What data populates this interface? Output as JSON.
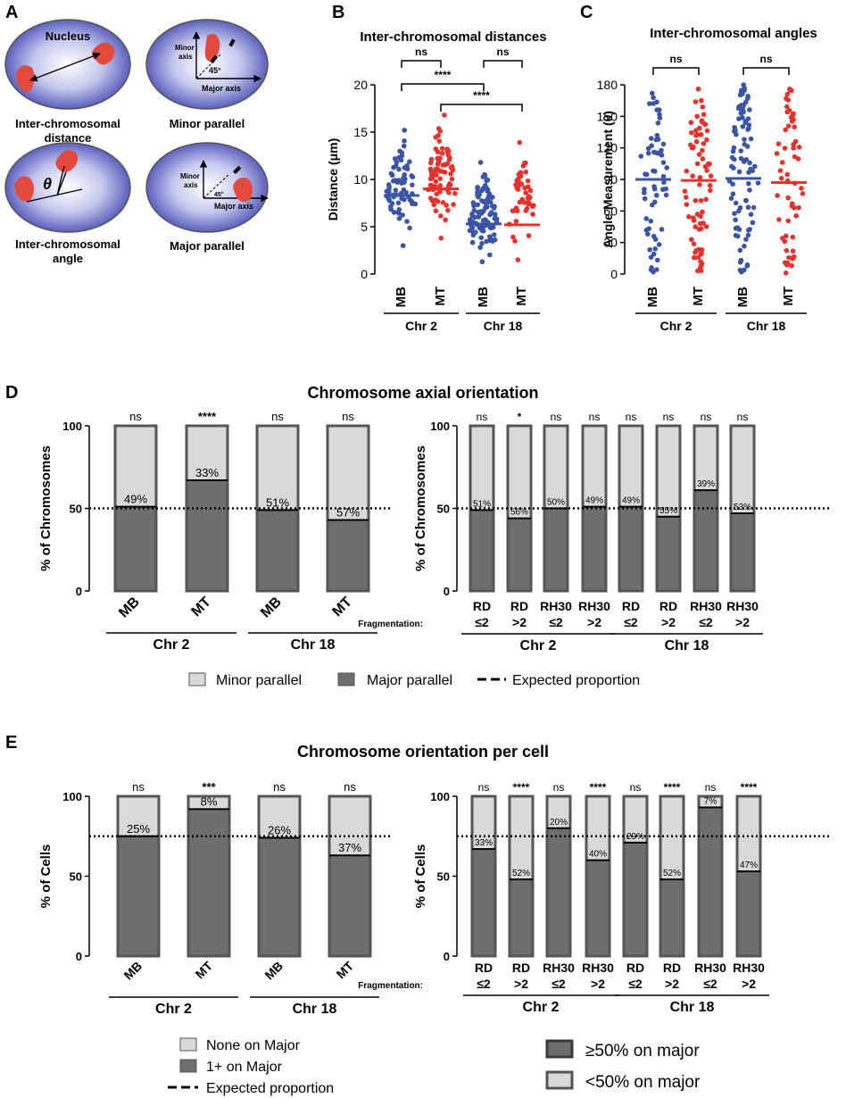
{
  "colors": {
    "blue": "#3a55a8",
    "red": "#e8312c",
    "light_gray": "#d9d9d9",
    "dark_gray": "#6e6e6e",
    "bar_outline": "#555555",
    "nucleus_edge": "#e8e9f7",
    "nucleus_core": "#6e73c7",
    "chromosome": "#e24a3d"
  },
  "panel_labels": {
    "a": "A",
    "b": "B",
    "c": "C",
    "d": "D",
    "e": "E"
  },
  "panel_a": {
    "nucleus_label": "Nucleus",
    "distance_label_1": "Inter-chromosomal",
    "distance_label_2": "distance",
    "minor_title": "Minor parallel",
    "angle_label_1": "Inter-chromosomal",
    "angle_label_2": "angle",
    "major_title": "Major parallel",
    "theta": "θ",
    "minor_axis_1": "Minor",
    "minor_axis_2": "axis",
    "major_axis": "Major axis",
    "angle_45": "45°"
  },
  "chart_data": [
    {
      "id": "B",
      "type": "scatter",
      "title": "Inter-chromosomal distances",
      "ylabel": "Distance (μm)",
      "ylim": [
        0,
        20
      ],
      "yticks": [
        0,
        5,
        10,
        15,
        20
      ],
      "categories": [
        "MB",
        "MT",
        "MB",
        "MT"
      ],
      "groups": [
        "Chr 2",
        "Chr 18"
      ],
      "series": [
        {
          "name": "Chr 2 MB",
          "color": "blue",
          "n": 70,
          "min": 3.0,
          "max": 15.2,
          "median": 8.3
        },
        {
          "name": "Chr 2 MT",
          "color": "red",
          "n": 75,
          "min": 3.8,
          "max": 16.8,
          "median": 9.0
        },
        {
          "name": "Chr 18 MB",
          "color": "blue",
          "n": 100,
          "min": 1.3,
          "max": 11.8,
          "median": 5.3
        },
        {
          "name": "Chr 18 MT",
          "color": "red",
          "n": 50,
          "min": 1.5,
          "max": 13.9,
          "median": 5.2
        }
      ],
      "significance": [
        {
          "label": "ns",
          "from": 0,
          "to": 1
        },
        {
          "label": "ns",
          "from": 2,
          "to": 3
        },
        {
          "label": "****",
          "from": 0,
          "to": 2
        },
        {
          "label": "****",
          "from": 1,
          "to": 3
        }
      ]
    },
    {
      "id": "C",
      "type": "scatter",
      "title": "Inter-chromosomal angles",
      "ylabel": "Angle Measurement (θ)",
      "ylim": [
        0,
        180
      ],
      "yticks": [
        0,
        30,
        60,
        90,
        120,
        150,
        180
      ],
      "categories": [
        "MB",
        "MT",
        "MB",
        "MT"
      ],
      "groups": [
        "Chr 2",
        "Chr 18"
      ],
      "series": [
        {
          "name": "Chr 2 MB",
          "color": "blue",
          "n": 62,
          "min": 2,
          "max": 172,
          "median": 90
        },
        {
          "name": "Chr 2 MT",
          "color": "red",
          "n": 78,
          "min": 3,
          "max": 176,
          "median": 89
        },
        {
          "name": "Chr 18 MB",
          "color": "blue",
          "n": 90,
          "min": 2,
          "max": 180,
          "median": 91
        },
        {
          "name": "Chr 18 MT",
          "color": "red",
          "n": 60,
          "min": 1,
          "max": 176,
          "median": 87
        }
      ],
      "significance": [
        {
          "label": "ns",
          "from": 0,
          "to": 1
        },
        {
          "label": "ns",
          "from": 2,
          "to": 3
        }
      ]
    },
    {
      "id": "D-left",
      "type": "bar",
      "stacked": true,
      "ylabel": "% of Chromosomes",
      "ylim": [
        0,
        100
      ],
      "yticks": [
        0,
        50,
        100
      ],
      "expected": 50,
      "categories": [
        "MB",
        "MT",
        "MB",
        "MT"
      ],
      "groups": [
        "Chr 2",
        "Chr 18"
      ],
      "series": [
        {
          "name": "Major parallel",
          "values": [
            51,
            67,
            49,
            43
          ]
        },
        {
          "name": "Minor parallel",
          "values": [
            49,
            33,
            51,
            57
          ]
        }
      ],
      "percent_labels": [
        "49%",
        "33%",
        "51%",
        "57%"
      ],
      "significance": [
        "ns",
        "****",
        "ns",
        "ns"
      ]
    },
    {
      "id": "D-right",
      "type": "bar",
      "stacked": true,
      "ylabel": "% of Chromosomes",
      "ylim": [
        0,
        100
      ],
      "yticks": [
        0,
        50,
        100
      ],
      "expected": 50,
      "categories": [
        "RD",
        "RD",
        "RH30",
        "RH30",
        "RD",
        "RD",
        "RH30",
        "RH30"
      ],
      "fragmentation": [
        "≤2",
        ">2",
        "≤2",
        ">2",
        "≤2",
        ">2",
        "≤2",
        ">2"
      ],
      "fragmentation_label": "Fragmentation:",
      "groups": [
        "Chr 2",
        "Chr 18"
      ],
      "series": [
        {
          "name": "Major parallel",
          "values": [
            49,
            44,
            50,
            51,
            51,
            45,
            61,
            47
          ]
        },
        {
          "name": "Minor parallel",
          "values": [
            51,
            56,
            50,
            49,
            49,
            55,
            39,
            53
          ]
        }
      ],
      "percent_labels": [
        "51%",
        "56%",
        "50%",
        "49%",
        "49%",
        "55%",
        "39%",
        "53%"
      ],
      "significance": [
        "ns",
        "*",
        "ns",
        "ns",
        "ns",
        "ns",
        "ns",
        "ns"
      ]
    },
    {
      "id": "E-left",
      "type": "bar",
      "stacked": true,
      "ylabel": "% of Cells",
      "ylim": [
        0,
        100
      ],
      "yticks": [
        0,
        50,
        100
      ],
      "expected": 75,
      "categories": [
        "MB",
        "MT",
        "MB",
        "MT"
      ],
      "groups": [
        "Chr 2",
        "Chr 18"
      ],
      "series": [
        {
          "name": "1+ on Major",
          "values": [
            75,
            92,
            74,
            63
          ]
        },
        {
          "name": "None on Major",
          "values": [
            25,
            8,
            26,
            37
          ]
        }
      ],
      "percent_labels": [
        "25%",
        "8%",
        "26%",
        "37%"
      ],
      "significance": [
        "ns",
        "***",
        "ns",
        "ns"
      ]
    },
    {
      "id": "E-right",
      "type": "bar",
      "stacked": true,
      "ylabel": "% of Cells",
      "ylim": [
        0,
        100
      ],
      "yticks": [
        0,
        50,
        100
      ],
      "expected": 75,
      "categories": [
        "RD",
        "RD",
        "RH30",
        "RH30",
        "RD",
        "RD",
        "RH30",
        "RH30"
      ],
      "fragmentation": [
        "≤2",
        ">2",
        "≤2",
        ">2",
        "≤2",
        ">2",
        "≤2",
        ">2"
      ],
      "fragmentation_label": "Fragmentation:",
      "groups": [
        "Chr 2",
        "Chr 18"
      ],
      "series": [
        {
          "name": "≥50% on major",
          "values": [
            67,
            48,
            80,
            60,
            71,
            48,
            93,
            53
          ]
        },
        {
          "name": "<50% on major",
          "values": [
            33,
            52,
            20,
            40,
            29,
            52,
            7,
            47
          ]
        }
      ],
      "percent_labels": [
        "33%",
        "52%",
        "20%",
        "40%",
        "29%",
        "52%",
        "7%",
        "47%"
      ],
      "significance": [
        "ns",
        "****",
        "ns",
        "****",
        "ns",
        "****",
        "ns",
        "****"
      ]
    }
  ],
  "section_titles": {
    "d": "Chromosome axial orientation",
    "e": "Chromosome orientation per cell"
  },
  "legend_d": {
    "minor": "Minor parallel",
    "major": "Major parallel",
    "expected": "Expected proportion"
  },
  "legend_e_left": {
    "none": "None on Major",
    "one_plus": "1+ on Major",
    "expected": "Expected proportion"
  },
  "legend_e_right": {
    "ge50": "≥50% on major",
    "lt50": "<50% on major"
  }
}
